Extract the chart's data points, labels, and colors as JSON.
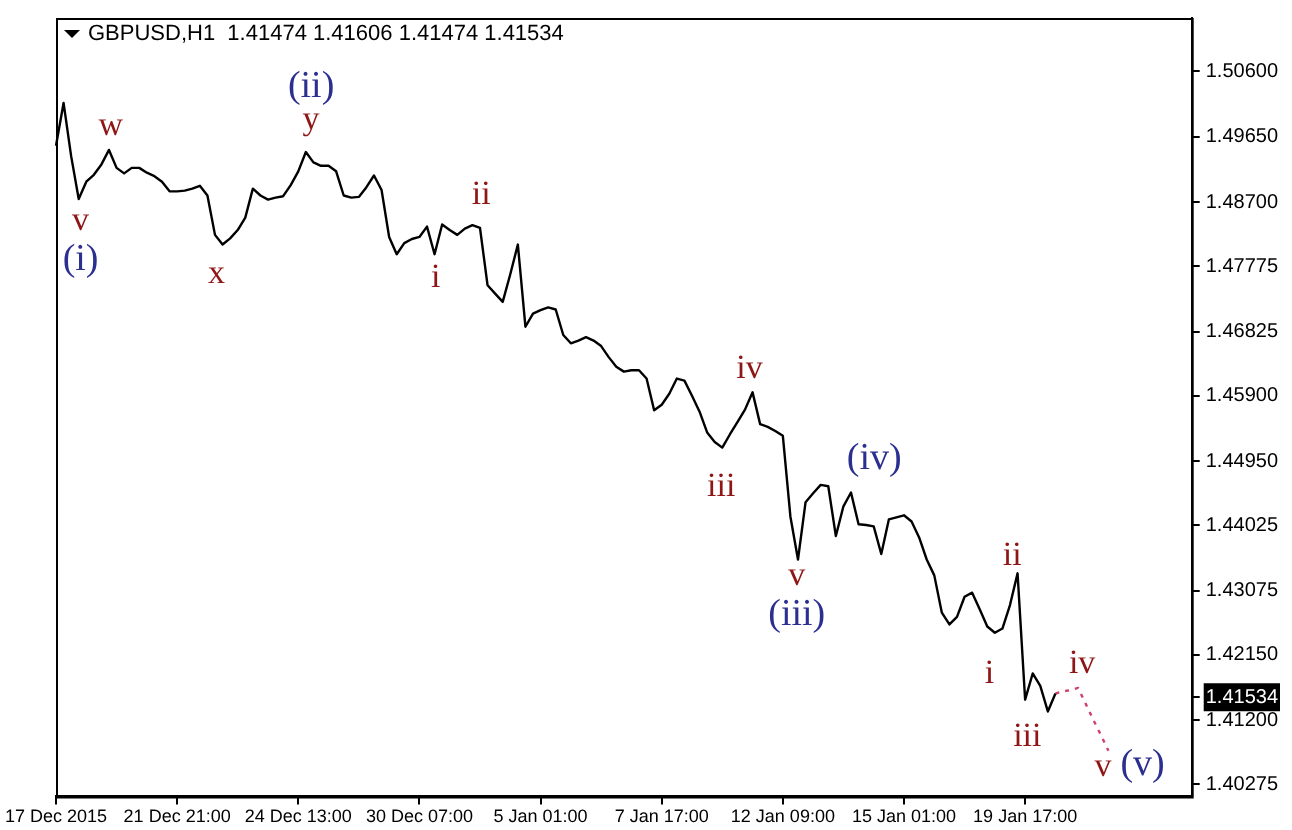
{
  "chart_data": {
    "type": "line",
    "title": "GBPUSD,H1  1.41474 1.41606 1.41474 1.41534",
    "categories": [
      "17 Dec 2015",
      null,
      null,
      null,
      null,
      null,
      null,
      null,
      null,
      null,
      null,
      null,
      null,
      null,
      null,
      null,
      "21 Dec 21:00",
      null,
      null,
      null,
      null,
      null,
      null,
      null,
      null,
      null,
      null,
      null,
      null,
      null,
      null,
      null,
      "24 Dec 13:00",
      null,
      null,
      null,
      null,
      null,
      null,
      null,
      null,
      null,
      null,
      null,
      null,
      null,
      null,
      null,
      "30 Dec 07:00",
      null,
      null,
      null,
      null,
      null,
      null,
      null,
      null,
      null,
      null,
      null,
      null,
      null,
      null,
      null,
      "5 Jan 01:00",
      null,
      null,
      null,
      null,
      null,
      null,
      null,
      null,
      null,
      null,
      null,
      null,
      null,
      null,
      null,
      "7 Jan 17:00",
      null,
      null,
      null,
      null,
      null,
      null,
      null,
      null,
      null,
      null,
      null,
      null,
      null,
      null,
      null,
      "12 Jan 09:00",
      null,
      null,
      null,
      null,
      null,
      null,
      null,
      null,
      null,
      null,
      null,
      null,
      null,
      null,
      null,
      "15 Jan 01:00",
      null,
      null,
      null,
      null,
      null,
      null,
      null,
      null,
      null,
      null,
      null,
      null,
      null,
      null,
      null,
      "19 Jan 17:00",
      null,
      null,
      null,
      null,
      null,
      null,
      null,
      null,
      null,
      null,
      null,
      null,
      null,
      null,
      null,
      null,
      null,
      null,
      null,
      null,
      null,
      null
    ],
    "series": [
      {
        "color": "#000000",
        "values": [
          1.4952,
          1.5014,
          1.4937,
          1.4875,
          1.49,
          1.491,
          1.4925,
          1.4946,
          1.492,
          1.4912,
          1.492,
          1.492,
          1.4913,
          1.4908,
          1.49,
          1.4886,
          1.4886,
          1.4887,
          1.489,
          1.4894,
          1.488,
          1.4823,
          1.4809,
          1.4818,
          1.483,
          1.4848,
          1.489,
          1.488,
          1.4874,
          1.4877,
          1.4879,
          1.4895,
          1.4915,
          1.4943,
          1.4928,
          1.4923,
          1.4923,
          1.4915,
          1.488,
          1.4877,
          1.4878,
          1.4892,
          1.4909,
          1.4888,
          1.482,
          1.4795,
          1.4811,
          1.4817,
          1.482,
          1.4835,
          1.4795,
          1.4838,
          1.483,
          1.4823,
          1.4832,
          1.4837,
          1.4833,
          1.475,
          1.4738,
          1.4726,
          1.4766,
          1.4809,
          1.469,
          1.4709,
          1.4714,
          1.4718,
          1.4715,
          1.4678,
          1.4666,
          1.467,
          1.4675,
          1.467,
          1.4662,
          1.4646,
          1.4632,
          1.4625,
          1.4627,
          1.4627,
          1.4615,
          1.4569,
          1.4577,
          1.4593,
          1.4615,
          1.4612,
          1.459,
          1.4567,
          1.4537,
          1.4523,
          1.4515,
          1.4534,
          1.4552,
          1.457,
          1.4595,
          1.4549,
          1.4545,
          1.4539,
          1.4532,
          1.4415,
          1.4353,
          1.4436,
          1.4449,
          1.4461,
          1.4459,
          1.4387,
          1.443,
          1.445,
          1.4404,
          1.4403,
          1.4401,
          1.4361,
          1.4411,
          1.4414,
          1.4417,
          1.4408,
          1.4385,
          1.4353,
          1.433,
          1.4276,
          1.4259,
          1.427,
          1.4299,
          1.4305,
          1.4281,
          1.4256,
          1.4247,
          1.4253,
          1.4287,
          1.4333,
          1.415,
          1.4188,
          1.417,
          1.4133,
          1.4159,
          null,
          null,
          null,
          null,
          null,
          null,
          null,
          null,
          null,
          null,
          null,
          null,
          null,
          null,
          null,
          null,
          null,
          null
        ]
      },
      {
        "color": "#d0406a",
        "line_style": "dotted",
        "values": [
          null,
          null,
          null,
          null,
          null,
          null,
          null,
          null,
          null,
          null,
          null,
          null,
          null,
          null,
          null,
          null,
          null,
          null,
          null,
          null,
          null,
          null,
          null,
          null,
          null,
          null,
          null,
          null,
          null,
          null,
          null,
          null,
          null,
          null,
          null,
          null,
          null,
          null,
          null,
          null,
          null,
          null,
          null,
          null,
          null,
          null,
          null,
          null,
          null,
          null,
          null,
          null,
          null,
          null,
          null,
          null,
          null,
          null,
          null,
          null,
          null,
          null,
          null,
          null,
          null,
          null,
          null,
          null,
          null,
          null,
          null,
          null,
          null,
          null,
          null,
          null,
          null,
          null,
          null,
          null,
          null,
          null,
          null,
          null,
          null,
          null,
          null,
          null,
          null,
          null,
          null,
          null,
          null,
          null,
          null,
          null,
          null,
          null,
          null,
          null,
          null,
          null,
          null,
          null,
          null,
          null,
          null,
          null,
          null,
          null,
          null,
          null,
          null,
          null,
          null,
          null,
          null,
          null,
          null,
          null,
          null,
          null,
          null,
          null,
          null,
          null,
          null,
          null,
          null,
          null,
          null,
          null,
          1.4159,
          1.4162,
          1.4164,
          1.4167,
          1.4144,
          1.4121,
          1.4099,
          1.4076,
          null,
          null,
          null,
          null,
          null,
          null,
          null,
          null,
          null,
          null,
          null
        ]
      }
    ],
    "annotations": [
      "v",
      "(i)",
      "w",
      "x",
      "(ii)",
      "y",
      "i",
      "ii",
      "iii",
      "iv",
      "v",
      "(iii)",
      "(iv)",
      "i",
      "ii",
      "iii",
      "iv",
      "v",
      "(v)"
    ],
    "ylim": [
      1.401,
      1.5137
    ],
    "yticks": [
      {
        "value": 1.506,
        "label": "1.50600"
      },
      {
        "value": 1.4965,
        "label": "1.49650"
      },
      {
        "value": 1.487,
        "label": "1.48700"
      },
      {
        "value": 1.47775,
        "label": "1.47775"
      },
      {
        "value": 1.46825,
        "label": "1.46825"
      },
      {
        "value": 1.459,
        "label": "1.45900"
      },
      {
        "value": 1.4495,
        "label": "1.44950"
      },
      {
        "value": 1.44025,
        "label": "1.44025"
      },
      {
        "value": 1.43075,
        "label": "1.43075"
      },
      {
        "value": 1.4215,
        "label": "1.42150"
      },
      {
        "value": 1.41534,
        "label": "1.41534"
      },
      {
        "value": 1.412,
        "label": "1.41200"
      },
      {
        "value": 1.40275,
        "label": "1.40275"
      }
    ],
    "grid": false,
    "legend": false,
    "marker": "none",
    "line_style": "solid"
  }
}
